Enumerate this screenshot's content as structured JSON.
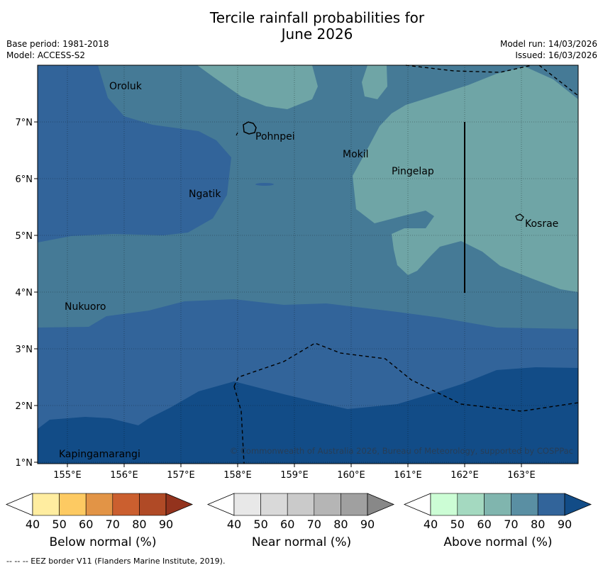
{
  "header": {
    "title_line1": "Tercile rainfall probabilities for",
    "title_line2": "June 2026",
    "base_period": "Base period: 1981-2018",
    "model": "Model: ACCESS-S2",
    "model_run": "Model run: 14/03/2026",
    "issued": "Issued: 16/03/2026"
  },
  "map": {
    "lon_ticks": [
      "155°E",
      "156°E",
      "157°E",
      "158°E",
      "159°E",
      "160°E",
      "161°E",
      "162°E",
      "163°E"
    ],
    "lat_ticks": [
      "7°N",
      "6°N",
      "5°N",
      "4°N",
      "3°N",
      "2°N",
      "1°N"
    ],
    "places": [
      "Oroluk",
      "Pohnpei",
      "Mokil",
      "Pingelap",
      "Ngatik",
      "Kosrae",
      "Nukuoro",
      "Kapingamarangi"
    ],
    "copyright": "© Commonwealth of Australia 2026, Bureau of Meteorology, supported by COSPPac",
    "colors": {
      "above_50": "#a6dbc0",
      "above_60": "#6fa5a6",
      "above_70": "#457a96",
      "above_80": "#32649a",
      "above_90": "#124c87"
    }
  },
  "colorbars": [
    {
      "label": "Below normal (%)",
      "ticks": [
        "40",
        "50",
        "60",
        "70",
        "80",
        "90"
      ],
      "colors": [
        "#ffeda0",
        "#fdca62",
        "#e29446",
        "#cb5f2f",
        "#b04a26",
        "#93331d"
      ]
    },
    {
      "label": "Near normal (%)",
      "ticks": [
        "40",
        "50",
        "60",
        "70",
        "80",
        "90"
      ],
      "colors": [
        "#e8e8e8",
        "#d9d9d9",
        "#cacaca",
        "#b5b5b5",
        "#a0a0a0",
        "#888888"
      ]
    },
    {
      "label": "Above normal (%)",
      "ticks": [
        "40",
        "50",
        "60",
        "70",
        "80",
        "90"
      ],
      "colors": [
        "#ccfdd5",
        "#a4d9c0",
        "#80b5ae",
        "#5a8fa3",
        "#32649a",
        "#124c87"
      ]
    }
  ],
  "footer": "--  --  -- EEZ border V11 (Flanders Marine Institute, 2019)."
}
